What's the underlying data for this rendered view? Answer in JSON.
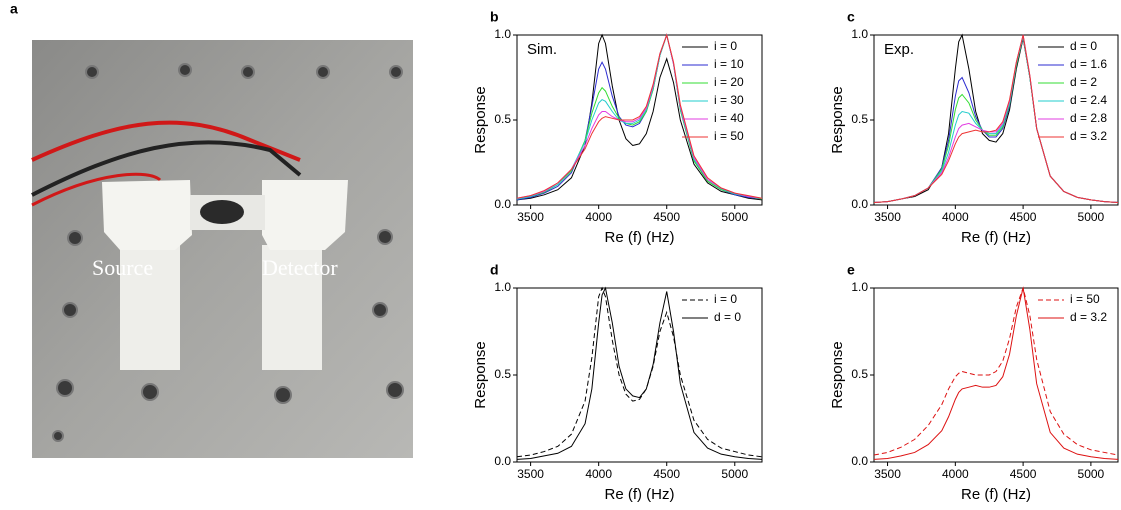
{
  "photo": {
    "panel_label": "a",
    "annotations": [
      "Source",
      "Detector"
    ]
  },
  "chart_data": [
    {
      "type": "line",
      "panel_label": "b",
      "annotation": "Sim.",
      "xlabel": "Re (f) (Hz)",
      "ylabel": "Response",
      "xlim": [
        3400,
        5200
      ],
      "xticks": [
        3500,
        4000,
        4500,
        5000
      ],
      "ylim": [
        0,
        1
      ],
      "yticks": [
        {
          "value": 0,
          "label": "0.0"
        },
        {
          "value": 0.5,
          "label": "0.5"
        },
        {
          "value": 1,
          "label": "1.0"
        }
      ],
      "x": [
        3400,
        3500,
        3600,
        3700,
        3800,
        3900,
        3950,
        4000,
        4025,
        4050,
        4100,
        4150,
        4200,
        4250,
        4300,
        4350,
        4400,
        4450,
        4500,
        4550,
        4600,
        4700,
        4800,
        4900,
        5000,
        5100,
        5200
      ],
      "series": [
        {
          "name": "i = 0",
          "color": "#000000",
          "values": [
            0.03,
            0.04,
            0.06,
            0.09,
            0.16,
            0.35,
            0.6,
            0.95,
            1.0,
            0.95,
            0.7,
            0.5,
            0.39,
            0.35,
            0.36,
            0.42,
            0.55,
            0.75,
            0.86,
            0.72,
            0.5,
            0.24,
            0.13,
            0.08,
            0.06,
            0.04,
            0.03
          ]
        },
        {
          "name": "i = 10",
          "color": "#2b2bd0",
          "values": [
            0.03,
            0.045,
            0.07,
            0.11,
            0.19,
            0.38,
            0.58,
            0.8,
            0.84,
            0.8,
            0.64,
            0.52,
            0.47,
            0.46,
            0.48,
            0.55,
            0.68,
            0.88,
            1.0,
            0.83,
            0.56,
            0.26,
            0.14,
            0.09,
            0.06,
            0.045,
            0.035
          ]
        },
        {
          "name": "i = 20",
          "color": "#33dd33",
          "values": [
            0.035,
            0.05,
            0.075,
            0.12,
            0.2,
            0.38,
            0.54,
            0.66,
            0.69,
            0.67,
            0.58,
            0.51,
            0.48,
            0.47,
            0.49,
            0.55,
            0.68,
            0.88,
            1.0,
            0.83,
            0.56,
            0.26,
            0.14,
            0.09,
            0.065,
            0.05,
            0.035
          ]
        },
        {
          "name": "i = 30",
          "color": "#22cccc",
          "values": [
            0.035,
            0.05,
            0.08,
            0.12,
            0.21,
            0.37,
            0.5,
            0.6,
            0.62,
            0.61,
            0.55,
            0.5,
            0.48,
            0.48,
            0.5,
            0.56,
            0.69,
            0.88,
            1.0,
            0.83,
            0.57,
            0.27,
            0.15,
            0.095,
            0.065,
            0.05,
            0.04
          ]
        },
        {
          "name": "i = 40",
          "color": "#e23ce2",
          "values": [
            0.04,
            0.055,
            0.08,
            0.13,
            0.21,
            0.35,
            0.45,
            0.53,
            0.55,
            0.55,
            0.52,
            0.5,
            0.49,
            0.49,
            0.51,
            0.57,
            0.7,
            0.89,
            1.0,
            0.83,
            0.58,
            0.28,
            0.15,
            0.1,
            0.07,
            0.05,
            0.04
          ]
        },
        {
          "name": "i = 50",
          "color": "#ee3333",
          "values": [
            0.04,
            0.055,
            0.085,
            0.13,
            0.21,
            0.33,
            0.42,
            0.49,
            0.51,
            0.52,
            0.51,
            0.5,
            0.5,
            0.5,
            0.52,
            0.58,
            0.71,
            0.89,
            1.0,
            0.84,
            0.59,
            0.29,
            0.16,
            0.1,
            0.07,
            0.055,
            0.04
          ]
        }
      ]
    },
    {
      "type": "line",
      "panel_label": "c",
      "annotation": "Exp.",
      "xlabel": "Re (f) (Hz)",
      "ylabel": "Response",
      "xlim": [
        3400,
        5200
      ],
      "xticks": [
        3500,
        4000,
        4500,
        5000
      ],
      "ylim": [
        0,
        1
      ],
      "yticks": [
        {
          "value": 0,
          "label": "0.0"
        },
        {
          "value": 0.5,
          "label": "0.5"
        },
        {
          "value": 1,
          "label": "1.0"
        }
      ],
      "x": [
        3400,
        3500,
        3600,
        3700,
        3800,
        3900,
        3950,
        4000,
        4025,
        4050,
        4100,
        4150,
        4200,
        4250,
        4300,
        4350,
        4400,
        4450,
        4500,
        4550,
        4600,
        4700,
        4800,
        4900,
        5000,
        5100,
        5200
      ],
      "series": [
        {
          "name": "d = 0",
          "color": "#000000",
          "values": [
            0.015,
            0.02,
            0.035,
            0.05,
            0.09,
            0.22,
            0.42,
            0.8,
            0.96,
            1.0,
            0.8,
            0.55,
            0.42,
            0.38,
            0.37,
            0.42,
            0.56,
            0.8,
            0.98,
            0.75,
            0.45,
            0.17,
            0.08,
            0.045,
            0.03,
            0.02,
            0.015
          ]
        },
        {
          "name": "d = 1.6",
          "color": "#2b2bd0",
          "values": [
            0.015,
            0.02,
            0.035,
            0.055,
            0.1,
            0.22,
            0.38,
            0.64,
            0.73,
            0.75,
            0.66,
            0.52,
            0.44,
            0.4,
            0.4,
            0.45,
            0.58,
            0.82,
            0.99,
            0.75,
            0.45,
            0.17,
            0.08,
            0.045,
            0.03,
            0.02,
            0.015
          ]
        },
        {
          "name": "d = 2",
          "color": "#33dd33",
          "values": [
            0.015,
            0.02,
            0.035,
            0.055,
            0.1,
            0.21,
            0.35,
            0.56,
            0.63,
            0.65,
            0.6,
            0.5,
            0.44,
            0.41,
            0.41,
            0.46,
            0.59,
            0.82,
            0.99,
            0.75,
            0.45,
            0.17,
            0.08,
            0.045,
            0.03,
            0.02,
            0.015
          ]
        },
        {
          "name": "d = 2.4",
          "color": "#22cccc",
          "values": [
            0.015,
            0.02,
            0.035,
            0.055,
            0.1,
            0.2,
            0.31,
            0.47,
            0.53,
            0.55,
            0.54,
            0.48,
            0.44,
            0.42,
            0.42,
            0.47,
            0.6,
            0.83,
            0.99,
            0.75,
            0.45,
            0.17,
            0.08,
            0.045,
            0.03,
            0.02,
            0.015
          ]
        },
        {
          "name": "d = 2.8",
          "color": "#e23ce2",
          "values": [
            0.015,
            0.02,
            0.035,
            0.055,
            0.1,
            0.19,
            0.28,
            0.4,
            0.45,
            0.47,
            0.48,
            0.46,
            0.44,
            0.43,
            0.43,
            0.48,
            0.61,
            0.84,
            1.0,
            0.76,
            0.45,
            0.17,
            0.08,
            0.045,
            0.03,
            0.02,
            0.015
          ]
        },
        {
          "name": "d = 3.2",
          "color": "#ee3333",
          "values": [
            0.015,
            0.02,
            0.035,
            0.055,
            0.1,
            0.18,
            0.26,
            0.36,
            0.4,
            0.42,
            0.43,
            0.44,
            0.43,
            0.43,
            0.44,
            0.49,
            0.62,
            0.84,
            1.0,
            0.76,
            0.45,
            0.17,
            0.08,
            0.045,
            0.03,
            0.02,
            0.015
          ]
        }
      ]
    },
    {
      "type": "line",
      "panel_label": "d",
      "xlabel": "Re (f) (Hz)",
      "ylabel": "Response",
      "xlim": [
        3400,
        5200
      ],
      "xticks": [
        3500,
        4000,
        4500,
        5000
      ],
      "ylim": [
        0,
        1
      ],
      "yticks": [
        {
          "value": 0,
          "label": "0.0"
        },
        {
          "value": 0.5,
          "label": "0.5"
        },
        {
          "value": 1,
          "label": "1.0"
        }
      ],
      "x": [
        3400,
        3500,
        3600,
        3700,
        3800,
        3900,
        3950,
        4000,
        4025,
        4050,
        4100,
        4150,
        4200,
        4250,
        4300,
        4350,
        4400,
        4450,
        4500,
        4550,
        4600,
        4700,
        4800,
        4900,
        5000,
        5100,
        5200
      ],
      "series": [
        {
          "name": "i = 0",
          "color": "#000000",
          "dashed": true,
          "values": [
            0.03,
            0.04,
            0.06,
            0.09,
            0.16,
            0.35,
            0.6,
            0.95,
            1.0,
            0.95,
            0.7,
            0.5,
            0.39,
            0.35,
            0.36,
            0.42,
            0.55,
            0.75,
            0.86,
            0.72,
            0.5,
            0.24,
            0.13,
            0.08,
            0.06,
            0.04,
            0.03
          ]
        },
        {
          "name": "d = 0",
          "color": "#000000",
          "values": [
            0.015,
            0.02,
            0.035,
            0.05,
            0.09,
            0.22,
            0.42,
            0.8,
            0.96,
            1.0,
            0.8,
            0.55,
            0.42,
            0.38,
            0.37,
            0.42,
            0.56,
            0.8,
            0.98,
            0.75,
            0.45,
            0.17,
            0.08,
            0.045,
            0.03,
            0.02,
            0.015
          ]
        }
      ]
    },
    {
      "type": "line",
      "panel_label": "e",
      "xlabel": "Re (f) (Hz)",
      "ylabel": "Response",
      "xlim": [
        3400,
        5200
      ],
      "xticks": [
        3500,
        4000,
        4500,
        5000
      ],
      "ylim": [
        0,
        1
      ],
      "yticks": [
        {
          "value": 0,
          "label": "0.0"
        },
        {
          "value": 0.5,
          "label": "0.5"
        },
        {
          "value": 1,
          "label": "1.0"
        }
      ],
      "x": [
        3400,
        3500,
        3600,
        3700,
        3800,
        3900,
        3950,
        4000,
        4025,
        4050,
        4100,
        4150,
        4200,
        4250,
        4300,
        4350,
        4400,
        4450,
        4500,
        4550,
        4600,
        4700,
        4800,
        4900,
        5000,
        5100,
        5200
      ],
      "series": [
        {
          "name": "i = 50",
          "color": "#dd1111",
          "dashed": true,
          "values": [
            0.04,
            0.055,
            0.085,
            0.13,
            0.21,
            0.33,
            0.42,
            0.49,
            0.51,
            0.52,
            0.51,
            0.5,
            0.5,
            0.5,
            0.52,
            0.58,
            0.71,
            0.89,
            1.0,
            0.84,
            0.59,
            0.29,
            0.16,
            0.1,
            0.07,
            0.055,
            0.04
          ]
        },
        {
          "name": "d = 3.2",
          "color": "#dd1111",
          "values": [
            0.015,
            0.02,
            0.035,
            0.055,
            0.1,
            0.18,
            0.26,
            0.36,
            0.4,
            0.42,
            0.43,
            0.44,
            0.43,
            0.43,
            0.44,
            0.49,
            0.62,
            0.84,
            1.0,
            0.76,
            0.45,
            0.17,
            0.08,
            0.045,
            0.03,
            0.02,
            0.015
          ]
        }
      ]
    }
  ]
}
